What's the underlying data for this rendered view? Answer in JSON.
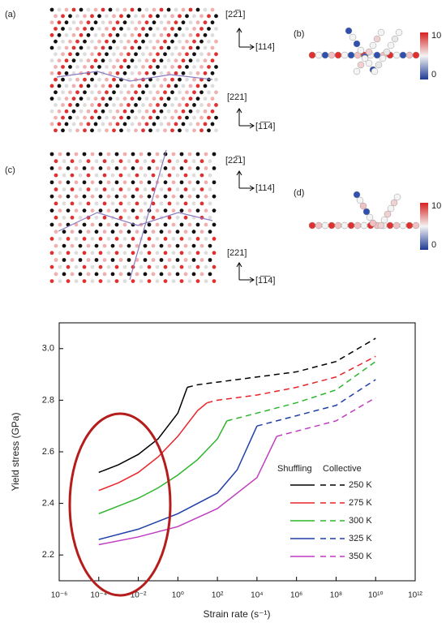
{
  "figure_panels": {
    "labels": [
      "(a)",
      "(b)",
      "(c)",
      "(d)"
    ],
    "directions_a": [
      "[22̅1]",
      "[114]",
      "[221]",
      "[1̅1̅4]"
    ],
    "directions_c": [
      "[22̅1]",
      "[114]",
      "[221]",
      "[1̅1̅4]"
    ],
    "colorbar_b": [
      "10",
      "0"
    ],
    "colorbar_d": [
      "10",
      "0"
    ]
  },
  "chart_data": {
    "type": "line",
    "x_label": "Strain rate (s⁻¹)",
    "y_label": "Yield stress (GPa)",
    "x_log": true,
    "xlim": [
      1e-06,
      1000000000000.0
    ],
    "xticks": [
      {
        "value": 1e-06,
        "label": "10⁻⁶"
      },
      {
        "value": 0.0001,
        "label": "10⁻⁴"
      },
      {
        "value": 0.01,
        "label": "10⁻²"
      },
      {
        "value": 1,
        "label": "10⁰"
      },
      {
        "value": 100.0,
        "label": "10²"
      },
      {
        "value": 10000.0,
        "label": "10⁴"
      },
      {
        "value": 1000000.0,
        "label": "10⁶"
      },
      {
        "value": 100000000.0,
        "label": "10⁸"
      },
      {
        "value": 10000000000.0,
        "label": "10¹⁰"
      },
      {
        "value": 1000000000000.0,
        "label": "10¹²"
      }
    ],
    "ylim": [
      2.1,
      3.1
    ],
    "yticks": [
      2.2,
      2.4,
      2.6,
      2.8,
      {
        "value": 3,
        "label": "3.0"
      }
    ],
    "legend_headers": [
      "Shuffling",
      "Collective"
    ],
    "series": [
      {
        "name": "250 K",
        "color": "#000000",
        "shuffling": {
          "x": [
            0.0001,
            0.001,
            0.01,
            0.1,
            1,
            3
          ],
          "values": [
            2.52,
            2.55,
            2.59,
            2.65,
            2.75,
            2.85
          ]
        },
        "collective": {
          "x": [
            3,
            10,
            100.0,
            10000.0,
            1000000.0,
            100000000.0,
            10000000000.0
          ],
          "values": [
            2.85,
            2.86,
            2.87,
            2.89,
            2.91,
            2.95,
            3.04
          ]
        }
      },
      {
        "name": "275 K",
        "color": "#e8242a",
        "shuffling": {
          "x": [
            0.0001,
            0.001,
            0.01,
            0.1,
            1,
            10,
            30
          ],
          "values": [
            2.45,
            2.48,
            2.52,
            2.58,
            2.66,
            2.76,
            2.79
          ]
        },
        "collective": {
          "x": [
            30,
            100.0,
            10000.0,
            1000000.0,
            100000000.0,
            10000000000.0
          ],
          "values": [
            2.79,
            2.8,
            2.82,
            2.85,
            2.89,
            2.97
          ]
        }
      },
      {
        "name": "300 K",
        "color": "#2db52d",
        "shuffling": {
          "x": [
            0.0001,
            0.001,
            0.01,
            0.1,
            1,
            10,
            100.0,
            300.0
          ],
          "values": [
            2.36,
            2.39,
            2.42,
            2.46,
            2.51,
            2.57,
            2.65,
            2.72
          ]
        },
        "collective": {
          "x": [
            300.0,
            1000.0,
            10000.0,
            1000000.0,
            100000000.0,
            10000000000.0
          ],
          "values": [
            2.72,
            2.73,
            2.75,
            2.79,
            2.84,
            2.95
          ]
        }
      },
      {
        "name": "325 K",
        "color": "#1f3fa8",
        "shuffling": {
          "x": [
            0.0001,
            0.01,
            1,
            100.0,
            1000.0,
            10000.0
          ],
          "values": [
            2.26,
            2.3,
            2.36,
            2.44,
            2.53,
            2.7
          ]
        },
        "collective": {
          "x": [
            10000.0,
            1000000.0,
            100000000.0,
            10000000000.0
          ],
          "values": [
            2.7,
            2.74,
            2.78,
            2.88
          ]
        }
      },
      {
        "name": "350 K",
        "color": "#c03cc0",
        "shuffling": {
          "x": [
            0.0001,
            0.01,
            1,
            100.0,
            10000.0,
            100000.0
          ],
          "values": [
            2.24,
            2.27,
            2.31,
            2.38,
            2.5,
            2.66
          ]
        },
        "collective": {
          "x": [
            100000.0,
            1000000.0,
            100000000.0,
            10000000000.0
          ],
          "values": [
            2.66,
            2.68,
            2.72,
            2.81
          ]
        }
      }
    ]
  }
}
